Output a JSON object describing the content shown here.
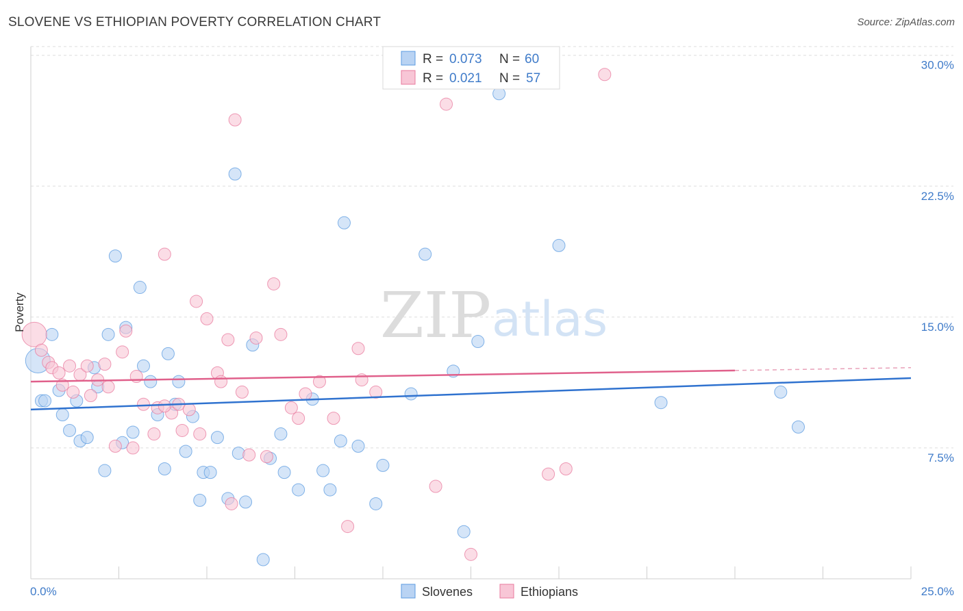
{
  "title": "SLOVENE VS ETHIOPIAN POVERTY CORRELATION CHART",
  "source": "Source: ZipAtlas.com",
  "watermark": {
    "zip": "ZIP",
    "atlas": "atlas"
  },
  "legend": {
    "r_label": "R =",
    "n_label": "N =",
    "series": [
      {
        "r": "0.073",
        "n": "60"
      },
      {
        "r": "0.021",
        "n": "57"
      }
    ]
  },
  "chart_data": {
    "type": "scatter",
    "title": "SLOVENE VS ETHIOPIAN POVERTY CORRELATION CHART",
    "xlabel": "",
    "ylabel": "Poverty",
    "xlim": [
      0,
      25
    ],
    "ylim": [
      0,
      30.5
    ],
    "x_tick_labels": [
      "0.0%",
      "25.0%"
    ],
    "y_ticks": [
      7.5,
      15.0,
      22.5,
      30.0
    ],
    "y_tick_labels": [
      "7.5%",
      "15.0%",
      "22.5%",
      "30.0%"
    ],
    "series": [
      {
        "name": "Slovenes",
        "color": "#5b9be0",
        "fill": "#b9d3f3",
        "trend": {
          "x0": 0,
          "y0": 9.7,
          "x1": 25,
          "y1": 11.5,
          "dashed_from": null
        },
        "points": [
          [
            0.2,
            12.5
          ],
          [
            0.3,
            10.2
          ],
          [
            0.4,
            10.2
          ],
          [
            0.6,
            14.0
          ],
          [
            0.8,
            10.8
          ],
          [
            0.9,
            9.4
          ],
          [
            1.1,
            8.5
          ],
          [
            1.3,
            10.2
          ],
          [
            1.4,
            7.9
          ],
          [
            1.6,
            8.1
          ],
          [
            1.8,
            12.1
          ],
          [
            1.9,
            11.0
          ],
          [
            2.1,
            6.2
          ],
          [
            2.2,
            14.0
          ],
          [
            2.4,
            18.5
          ],
          [
            2.6,
            7.8
          ],
          [
            2.7,
            14.4
          ],
          [
            2.9,
            8.4
          ],
          [
            3.1,
            16.7
          ],
          [
            3.2,
            12.2
          ],
          [
            3.4,
            11.3
          ],
          [
            3.6,
            9.4
          ],
          [
            3.8,
            6.3
          ],
          [
            3.9,
            12.9
          ],
          [
            4.1,
            10.0
          ],
          [
            4.2,
            11.3
          ],
          [
            4.4,
            7.3
          ],
          [
            4.6,
            9.3
          ],
          [
            4.8,
            4.5
          ],
          [
            4.9,
            6.1
          ],
          [
            5.1,
            6.1
          ],
          [
            5.3,
            8.1
          ],
          [
            5.6,
            4.6
          ],
          [
            5.8,
            23.2
          ],
          [
            5.9,
            7.2
          ],
          [
            6.1,
            4.4
          ],
          [
            6.3,
            13.4
          ],
          [
            6.6,
            1.1
          ],
          [
            6.8,
            6.9
          ],
          [
            7.1,
            8.3
          ],
          [
            7.2,
            6.1
          ],
          [
            7.6,
            5.1
          ],
          [
            8.0,
            10.3
          ],
          [
            8.3,
            6.2
          ],
          [
            8.5,
            5.1
          ],
          [
            8.8,
            7.9
          ],
          [
            8.9,
            20.4
          ],
          [
            9.3,
            7.6
          ],
          [
            9.8,
            4.3
          ],
          [
            10.0,
            6.5
          ],
          [
            10.8,
            10.6
          ],
          [
            11.2,
            18.6
          ],
          [
            12.0,
            11.9
          ],
          [
            12.3,
            2.7
          ],
          [
            12.7,
            13.6
          ],
          [
            13.3,
            27.8
          ],
          [
            15.0,
            19.1
          ],
          [
            17.9,
            10.1
          ],
          [
            21.3,
            10.7
          ],
          [
            21.8,
            8.7
          ]
        ]
      },
      {
        "name": "Ethiopians",
        "color": "#e8799e",
        "fill": "#f8c6d6",
        "trend": {
          "x0": 0,
          "y0": 11.3,
          "x1": 25,
          "y1": 12.1,
          "dashed_from": 20
        },
        "points": [
          [
            0.1,
            14.0
          ],
          [
            0.3,
            13.1
          ],
          [
            0.5,
            12.4
          ],
          [
            0.6,
            12.1
          ],
          [
            0.8,
            11.8
          ],
          [
            0.9,
            11.1
          ],
          [
            1.1,
            12.2
          ],
          [
            1.2,
            10.7
          ],
          [
            1.4,
            11.7
          ],
          [
            1.6,
            12.2
          ],
          [
            1.7,
            10.5
          ],
          [
            1.9,
            11.4
          ],
          [
            2.1,
            12.3
          ],
          [
            2.2,
            11.0
          ],
          [
            2.4,
            7.6
          ],
          [
            2.6,
            13.0
          ],
          [
            2.7,
            14.2
          ],
          [
            2.9,
            7.5
          ],
          [
            3.0,
            11.6
          ],
          [
            3.2,
            10.0
          ],
          [
            3.5,
            8.3
          ],
          [
            3.6,
            9.8
          ],
          [
            3.8,
            18.6
          ],
          [
            4.0,
            9.5
          ],
          [
            4.2,
            10.0
          ],
          [
            4.3,
            8.5
          ],
          [
            4.5,
            9.7
          ],
          [
            4.7,
            15.9
          ],
          [
            4.8,
            8.3
          ],
          [
            5.0,
            14.9
          ],
          [
            5.3,
            11.8
          ],
          [
            5.4,
            11.3
          ],
          [
            5.6,
            13.7
          ],
          [
            5.8,
            26.3
          ],
          [
            6.0,
            10.7
          ],
          [
            6.2,
            7.1
          ],
          [
            6.4,
            13.8
          ],
          [
            6.7,
            7.0
          ],
          [
            6.9,
            16.9
          ],
          [
            7.1,
            14.0
          ],
          [
            7.4,
            9.8
          ],
          [
            7.6,
            9.2
          ],
          [
            7.8,
            10.6
          ],
          [
            8.2,
            11.3
          ],
          [
            8.6,
            9.2
          ],
          [
            9.0,
            3.0
          ],
          [
            9.3,
            13.2
          ],
          [
            9.4,
            11.4
          ],
          [
            9.8,
            10.7
          ],
          [
            11.5,
            5.3
          ],
          [
            11.8,
            27.2
          ],
          [
            12.5,
            1.4
          ],
          [
            14.7,
            6.0
          ],
          [
            15.2,
            6.3
          ],
          [
            16.3,
            28.9
          ],
          [
            5.7,
            4.3
          ],
          [
            3.8,
            9.9
          ]
        ]
      }
    ],
    "bottom_legend": [
      "Slovenes",
      "Ethiopians"
    ]
  }
}
